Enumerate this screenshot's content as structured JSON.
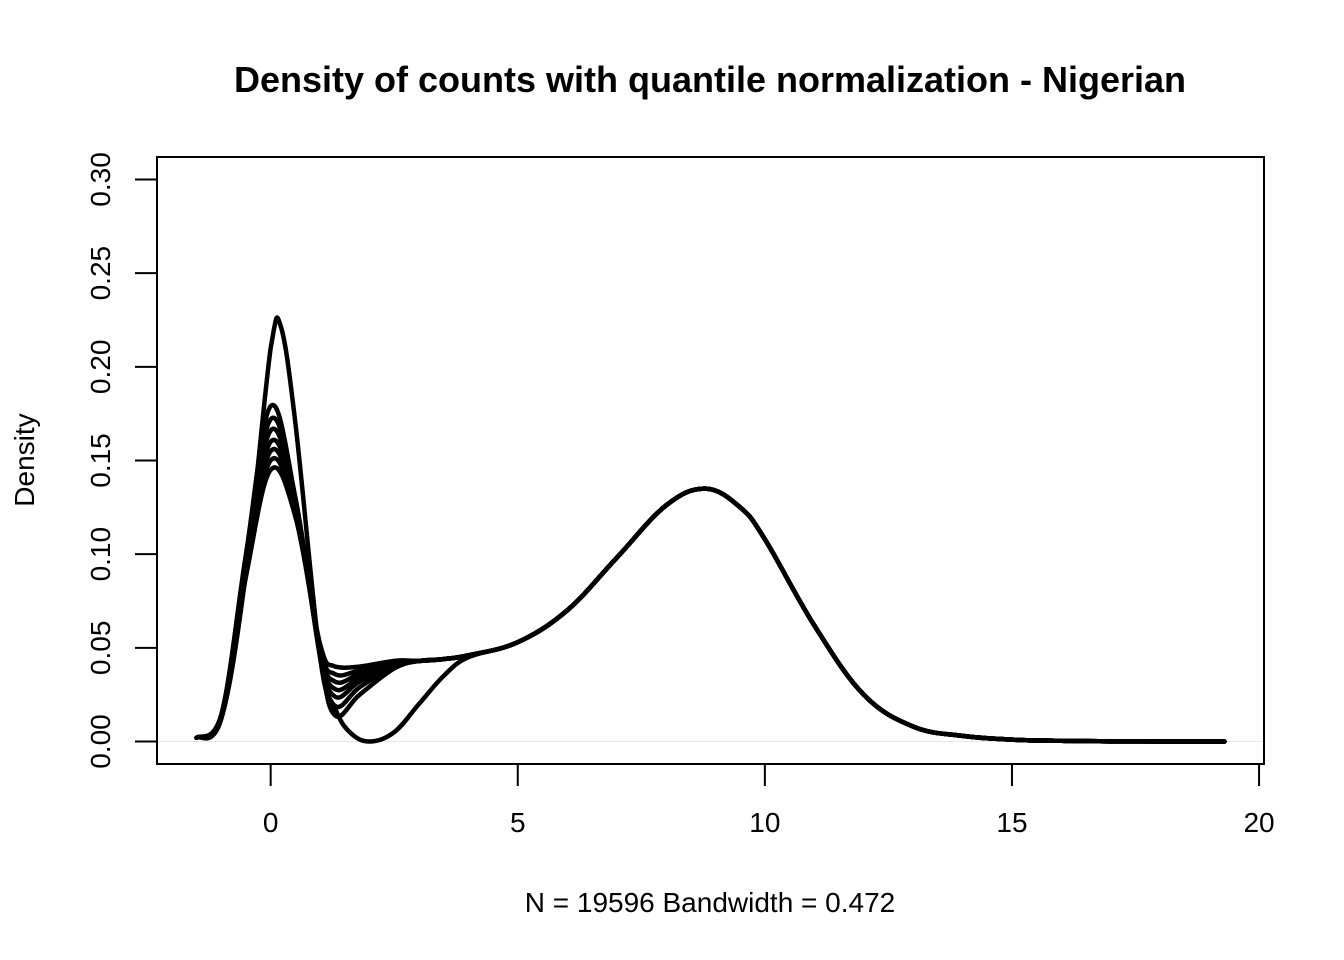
{
  "chart_data": {
    "type": "line",
    "title": "Density of counts with quantile normalization - Nigerian",
    "xlabel": "N = 19596   Bandwidth = 0.472",
    "ylabel": "Density",
    "xlim": [
      -2.3,
      20.1
    ],
    "ylim": [
      -0.012,
      0.312
    ],
    "x_ticks": [
      0,
      5,
      10,
      15,
      20
    ],
    "x_tick_labels": [
      "0",
      "5",
      "10",
      "15",
      "20"
    ],
    "y_ticks": [
      0.0,
      0.05,
      0.1,
      0.15,
      0.2,
      0.25,
      0.3
    ],
    "y_tick_labels": [
      "0.00",
      "0.05",
      "0.10",
      "0.15",
      "0.20",
      "0.25",
      "0.30"
    ],
    "grid": false,
    "legend": "none",
    "series_color": "#000000",
    "series": [
      {
        "x": [
          -1.5,
          -1.0,
          -0.5,
          0.0,
          0.2,
          0.5,
          1.0,
          1.3,
          1.6,
          2.0,
          2.5,
          3.0,
          3.5,
          4.0,
          5.0,
          6.0,
          7.0,
          8.0,
          8.8,
          9.5,
          10.0,
          11.0,
          12.0,
          13.0,
          14.0,
          15.0,
          16.0,
          17.0,
          19.3
        ],
        "y": [
          0.002,
          0.012,
          0.09,
          0.21,
          0.222,
          0.17,
          0.045,
          0.018,
          0.005,
          0.0,
          0.005,
          0.02,
          0.035,
          0.045,
          0.053,
          0.07,
          0.098,
          0.126,
          0.135,
          0.125,
          0.108,
          0.062,
          0.025,
          0.008,
          0.003,
          0.001,
          0.0004,
          0.0001,
          0.0
        ]
      },
      {
        "x": [
          -1.5,
          -1.0,
          -0.5,
          0.0,
          0.5,
          1.0,
          1.3,
          1.8,
          2.5,
          3.0,
          3.5,
          4.0,
          5.0,
          6.0,
          7.0,
          8.0,
          8.8,
          9.5,
          10.0,
          11.0,
          12.0,
          13.0,
          14.0,
          15.0,
          16.0,
          17.0,
          19.3
        ],
        "y": [
          0.002,
          0.014,
          0.1,
          0.179,
          0.13,
          0.045,
          0.014,
          0.025,
          0.039,
          0.043,
          0.044,
          0.046,
          0.053,
          0.07,
          0.098,
          0.126,
          0.135,
          0.125,
          0.108,
          0.062,
          0.025,
          0.008,
          0.003,
          0.001,
          0.0004,
          0.0001,
          0.0
        ]
      },
      {
        "x": [
          -1.5,
          -1.0,
          -0.5,
          0.0,
          0.5,
          1.0,
          1.3,
          1.8,
          2.5,
          3.0,
          3.5,
          4.0,
          5.0,
          6.0,
          7.0,
          8.0,
          8.8,
          9.5,
          10.0,
          11.0,
          12.0,
          13.0,
          14.0,
          15.0,
          16.0,
          17.0,
          19.3
        ],
        "y": [
          0.002,
          0.014,
          0.098,
          0.172,
          0.13,
          0.046,
          0.019,
          0.029,
          0.04,
          0.043,
          0.044,
          0.046,
          0.053,
          0.07,
          0.098,
          0.126,
          0.135,
          0.125,
          0.108,
          0.062,
          0.025,
          0.008,
          0.003,
          0.001,
          0.0004,
          0.0001,
          0.0
        ]
      },
      {
        "x": [
          -1.5,
          -1.0,
          -0.5,
          0.0,
          0.5,
          1.0,
          1.3,
          1.8,
          2.5,
          3.0,
          3.5,
          4.0,
          5.0,
          6.0,
          7.0,
          8.0,
          8.8,
          9.5,
          10.0,
          11.0,
          12.0,
          13.0,
          14.0,
          15.0,
          16.0,
          17.0,
          19.3
        ],
        "y": [
          0.002,
          0.014,
          0.096,
          0.166,
          0.128,
          0.047,
          0.024,
          0.032,
          0.041,
          0.043,
          0.044,
          0.046,
          0.053,
          0.07,
          0.098,
          0.126,
          0.135,
          0.125,
          0.108,
          0.062,
          0.025,
          0.008,
          0.003,
          0.001,
          0.0004,
          0.0001,
          0.0
        ]
      },
      {
        "x": [
          -1.5,
          -1.0,
          -0.5,
          0.0,
          0.5,
          1.0,
          1.3,
          1.8,
          2.5,
          3.0,
          3.5,
          4.0,
          5.0,
          6.0,
          7.0,
          8.0,
          8.8,
          9.5,
          10.0,
          11.0,
          12.0,
          13.0,
          14.0,
          15.0,
          16.0,
          17.0,
          19.3
        ],
        "y": [
          0.002,
          0.014,
          0.094,
          0.16,
          0.126,
          0.048,
          0.028,
          0.034,
          0.042,
          0.043,
          0.044,
          0.046,
          0.053,
          0.07,
          0.098,
          0.126,
          0.135,
          0.125,
          0.108,
          0.062,
          0.025,
          0.008,
          0.003,
          0.001,
          0.0004,
          0.0001,
          0.0
        ]
      },
      {
        "x": [
          -1.5,
          -1.0,
          -0.5,
          0.0,
          0.5,
          1.0,
          1.3,
          1.8,
          2.5,
          3.0,
          3.5,
          4.0,
          5.0,
          6.0,
          7.0,
          8.0,
          8.8,
          9.5,
          10.0,
          11.0,
          12.0,
          13.0,
          14.0,
          15.0,
          16.0,
          17.0,
          19.3
        ],
        "y": [
          0.002,
          0.014,
          0.092,
          0.155,
          0.124,
          0.049,
          0.032,
          0.036,
          0.042,
          0.043,
          0.044,
          0.046,
          0.053,
          0.07,
          0.098,
          0.126,
          0.135,
          0.125,
          0.108,
          0.062,
          0.025,
          0.008,
          0.003,
          0.001,
          0.0004,
          0.0001,
          0.0
        ]
      },
      {
        "x": [
          -1.5,
          -1.0,
          -0.5,
          0.0,
          0.5,
          1.0,
          1.3,
          1.8,
          2.5,
          3.0,
          3.5,
          4.0,
          5.0,
          6.0,
          7.0,
          8.0,
          8.8,
          9.5,
          10.0,
          11.0,
          12.0,
          13.0,
          14.0,
          15.0,
          16.0,
          17.0,
          19.3
        ],
        "y": [
          0.002,
          0.014,
          0.09,
          0.15,
          0.122,
          0.05,
          0.036,
          0.038,
          0.043,
          0.043,
          0.044,
          0.046,
          0.053,
          0.07,
          0.098,
          0.126,
          0.135,
          0.125,
          0.108,
          0.062,
          0.025,
          0.008,
          0.003,
          0.001,
          0.0004,
          0.0001,
          0.0
        ]
      },
      {
        "x": [
          -1.5,
          -1.0,
          -0.5,
          0.0,
          0.5,
          1.0,
          1.3,
          1.8,
          2.5,
          3.0,
          3.5,
          4.0,
          5.0,
          6.0,
          7.0,
          8.0,
          8.8,
          9.5,
          10.0,
          11.0,
          12.0,
          13.0,
          14.0,
          15.0,
          16.0,
          17.0,
          19.3
        ],
        "y": [
          0.002,
          0.014,
          0.088,
          0.145,
          0.12,
          0.052,
          0.04,
          0.04,
          0.043,
          0.043,
          0.044,
          0.046,
          0.053,
          0.07,
          0.098,
          0.126,
          0.135,
          0.125,
          0.108,
          0.062,
          0.025,
          0.008,
          0.003,
          0.001,
          0.0004,
          0.0001,
          0.0
        ]
      }
    ]
  }
}
